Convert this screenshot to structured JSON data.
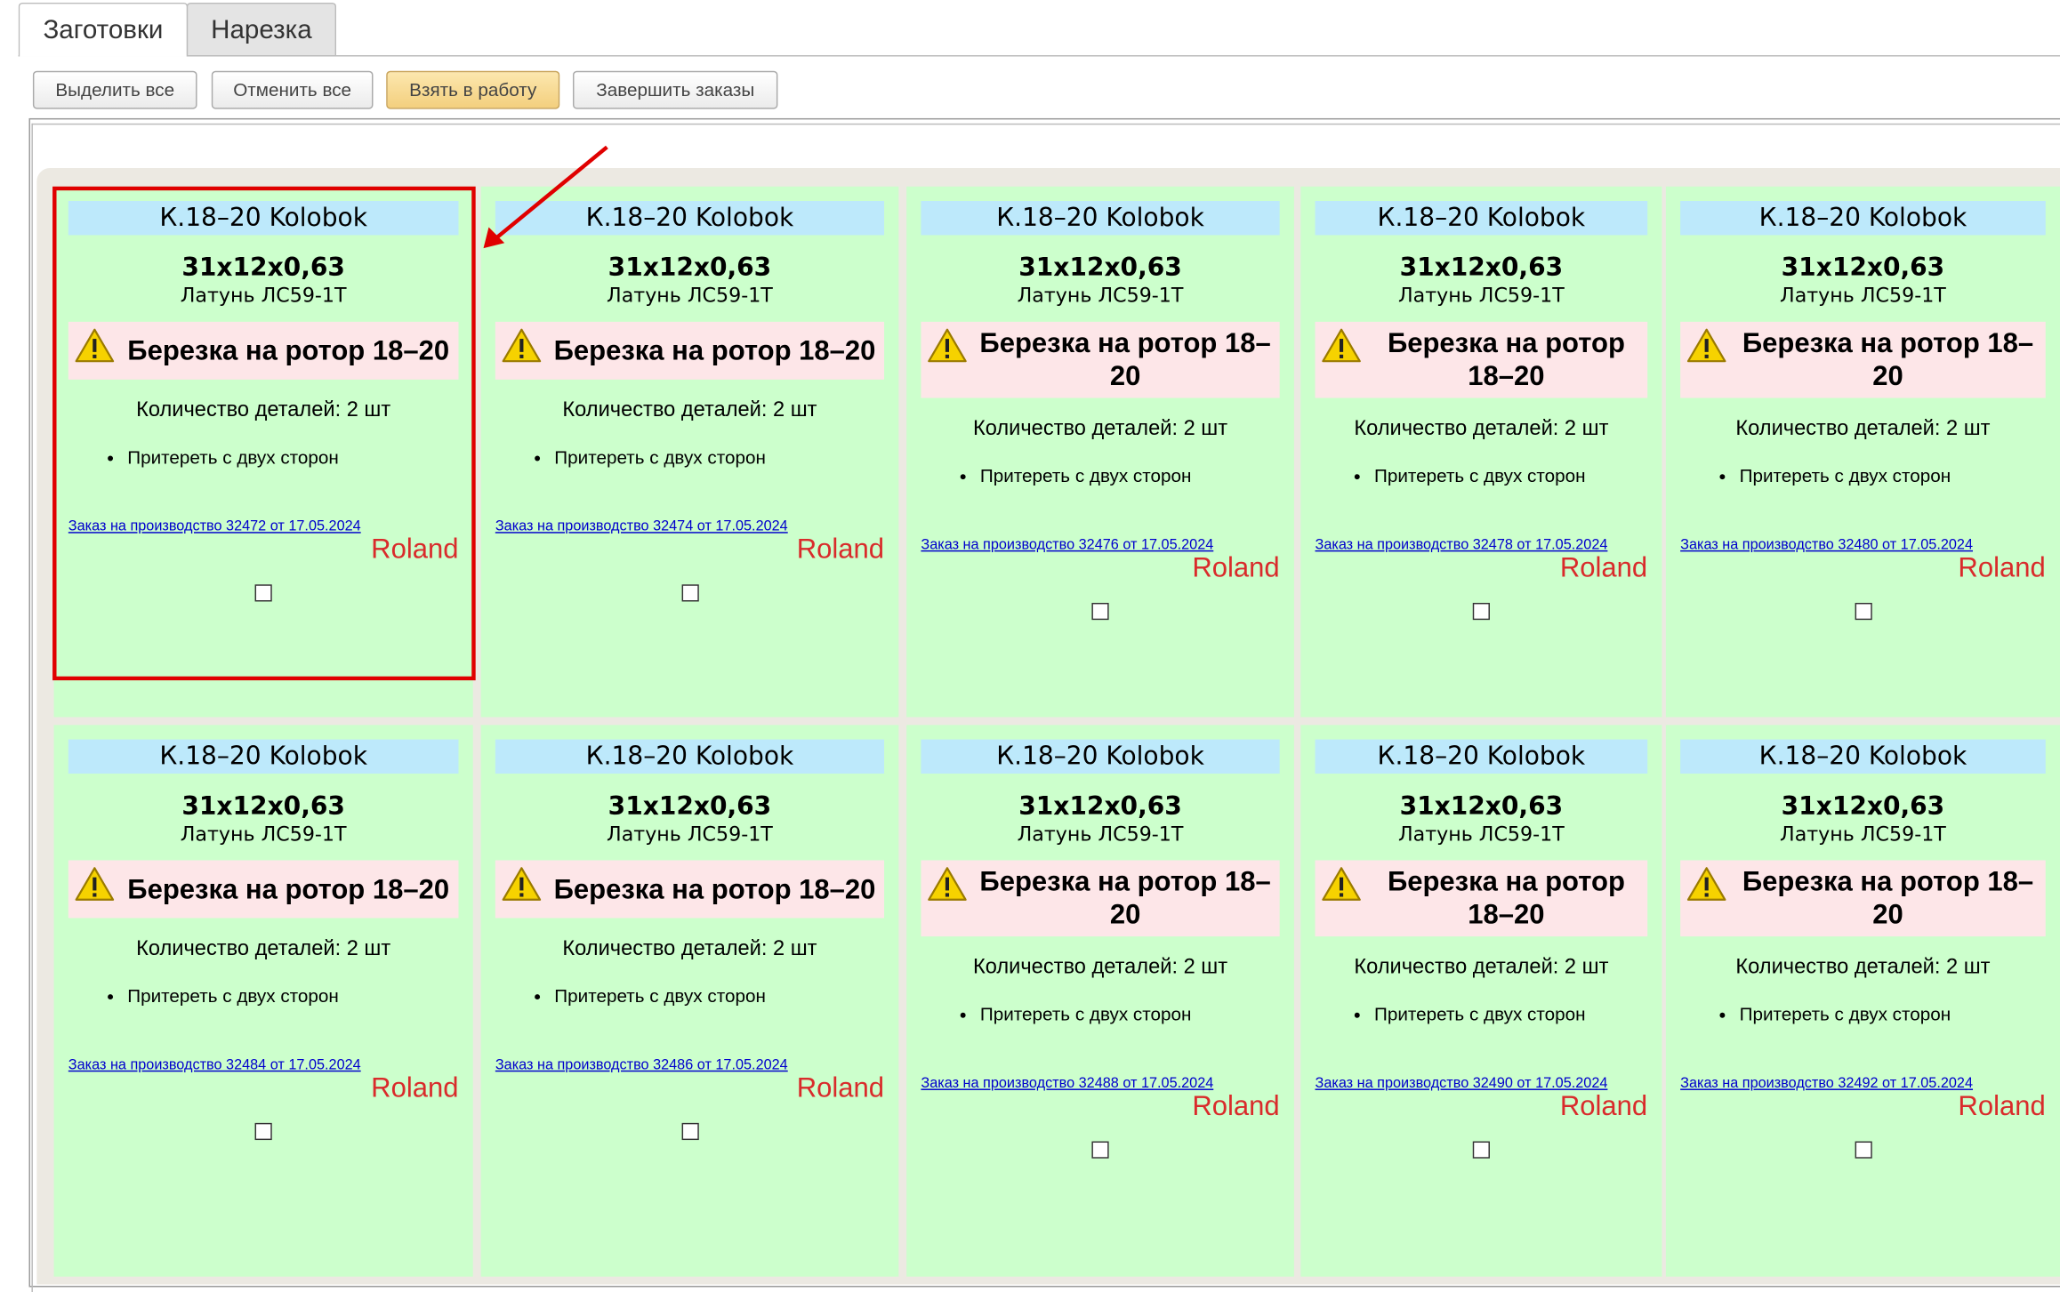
{
  "tabs": [
    "Заготовки",
    "Нарезка"
  ],
  "buttons": [
    "Выделить все",
    "Отменить все",
    "Взять в работу",
    "Завершить заказы"
  ],
  "cards": [
    {
      "title": "К.18–20 Kolobok",
      "size": "31x12x0,63",
      "material": "Латунь ЛС59-1Т",
      "task": "Березка на ротор 18–20",
      "quantity": "Количество деталей: 2 шт",
      "operations": [
        "Притереть с двух сторон"
      ],
      "order": "Заказ на производство 32472 от 17.05.2024",
      "author": "Roland"
    },
    {
      "title": "К.18–20 Kolobok",
      "size": "31x12x0,63",
      "material": "Латунь ЛС59-1Т",
      "task": "Березка на ротор 18–20",
      "quantity": "Количество деталей: 2 шт",
      "operations": [
        "Притереть с двух сторон"
      ],
      "order": "Заказ на производство 32474 от 17.05.2024",
      "author": "Roland"
    },
    {
      "title": "К.18–20 Kolobok",
      "size": "31x12x0,63",
      "material": "Латунь ЛС59-1Т",
      "task": "Березка на ротор 18–20",
      "quantity": "Количество деталей: 2 шт",
      "operations": [
        "Притереть с двух сторон"
      ],
      "order": "Заказ на производство 32476 от 17.05.2024",
      "author": "Roland"
    },
    {
      "title": "К.18–20 Kolobok",
      "size": "31x12x0,63",
      "material": "Латунь ЛС59-1Т",
      "task": "Березка на ротор 18–20",
      "quantity": "Количество деталей: 2 шт",
      "operations": [
        "Притереть с двух сторон"
      ],
      "order": "Заказ на производство 32478 от 17.05.2024",
      "author": "Roland"
    },
    {
      "title": "К.18–20 Kolobok",
      "size": "31x12x0,63",
      "material": "Латунь ЛС59-1Т",
      "task": "Березка на ротор 18–20",
      "quantity": "Количество деталей: 2 шт",
      "operations": [
        "Притереть с двух сторон"
      ],
      "order": "Заказ на производство 32480 от 17.05.2024",
      "author": "Roland"
    },
    {
      "title": "К.18–20 Kolobok",
      "size": "31x12x0,63",
      "material": "Латунь ЛС59-1Т",
      "task": "Березка на ротор 18–20",
      "quantity": "Количество деталей: 2 шт",
      "operations": [
        "Притереть с двух сторон"
      ],
      "order": "Заказ на производство 32484 от 17.05.2024",
      "author": "Roland"
    },
    {
      "title": "К.18–20 Kolobok",
      "size": "31x12x0,63",
      "material": "Латунь ЛС59-1Т",
      "task": "Березка на ротор 18–20",
      "quantity": "Количество деталей: 2 шт",
      "operations": [
        "Притереть с двух сторон"
      ],
      "order": "Заказ на производство 32486 от 17.05.2024",
      "author": "Roland"
    },
    {
      "title": "К.18–20 Kolobok",
      "size": "31x12x0,63",
      "material": "Латунь ЛС59-1Т",
      "task": "Березка на ротор 18–20",
      "quantity": "Количество деталей: 2 шт",
      "operations": [
        "Притереть с двух сторон"
      ],
      "order": "Заказ на производство 32488 от 17.05.2024",
      "author": "Roland"
    },
    {
      "title": "К.18–20 Kolobok",
      "size": "31x12x0,63",
      "material": "Латунь ЛС59-1Т",
      "task": "Березка на ротор 18–20",
      "quantity": "Количество деталей: 2 шт",
      "operations": [
        "Притереть с двух сторон"
      ],
      "order": "Заказ на производство 32490 от 17.05.2024",
      "author": "Roland"
    },
    {
      "title": "К.18–20 Kolobok",
      "size": "31x12x0,63",
      "material": "Латунь ЛС59-1Т",
      "task": "Березка на ротор 18–20",
      "quantity": "Количество деталей: 2 шт",
      "operations": [
        "Притереть с двух сторон"
      ],
      "order": "Заказ на производство 32492 от 17.05.2024",
      "author": "Roland"
    }
  ]
}
